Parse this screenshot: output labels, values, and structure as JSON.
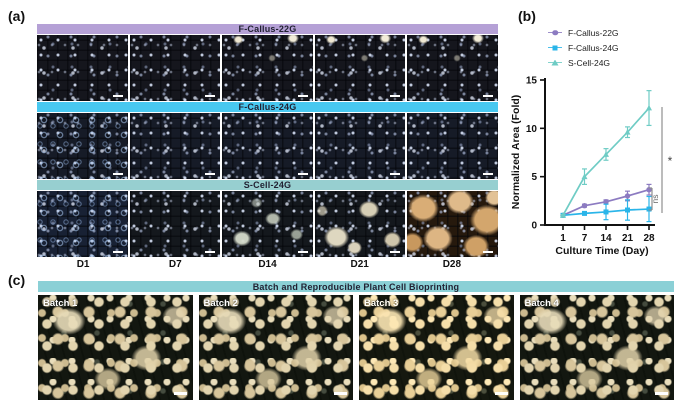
{
  "panels": {
    "a": {
      "label": "(a)",
      "rows": [
        {
          "header": "F-Callus-22G",
          "header_color": "#b5a1d6"
        },
        {
          "header": "F-Callus-24G",
          "header_color": "#48c8f0"
        },
        {
          "header": "S-Cell-24G",
          "header_color": "#97cfd0"
        }
      ],
      "day_labels": [
        "D1",
        "D7",
        "D14",
        "D21",
        "D28"
      ]
    },
    "b": {
      "label": "(b)",
      "chart_data": {
        "type": "line",
        "x": [
          1,
          7,
          14,
          21,
          28
        ],
        "xlabel": "Culture Time (Day)",
        "ylabel": "Normalized Area (Fold)",
        "ylim": [
          0,
          15
        ],
        "yticks": [
          0,
          5,
          10,
          15
        ],
        "legend_position": "top",
        "grid": false,
        "series": [
          {
            "name": "F-Callus-22G",
            "color": "#8c7bc1",
            "marker": "circle",
            "values": [
              1.0,
              2.0,
              2.4,
              3.0,
              3.65
            ],
            "errors": [
              0.08,
              0.15,
              0.2,
              0.5,
              0.55
            ]
          },
          {
            "name": "F-Callus-24G",
            "color": "#2ab5e9",
            "marker": "square",
            "values": [
              1.0,
              1.2,
              1.35,
              1.55,
              1.65
            ],
            "errors": [
              0.08,
              0.15,
              0.8,
              1.05,
              1.3
            ]
          },
          {
            "name": "S-Cell-24G",
            "color": "#6fccc5",
            "marker": "triangle",
            "values": [
              1.0,
              5.0,
              7.3,
              9.6,
              12.1
            ],
            "errors": [
              0.08,
              0.8,
              0.6,
              0.55,
              1.8
            ]
          }
        ],
        "annotations": [
          {
            "label": "*"
          },
          {
            "label": "ns"
          }
        ]
      }
    },
    "c": {
      "label": "(c)",
      "header": "Batch and Reproducible Plant Cell Bioprinting",
      "header_color": "#8bd0d6",
      "batch_labels": [
        "Batch 1",
        "Batch 2",
        "Batch 3",
        "Batch 4"
      ]
    }
  }
}
